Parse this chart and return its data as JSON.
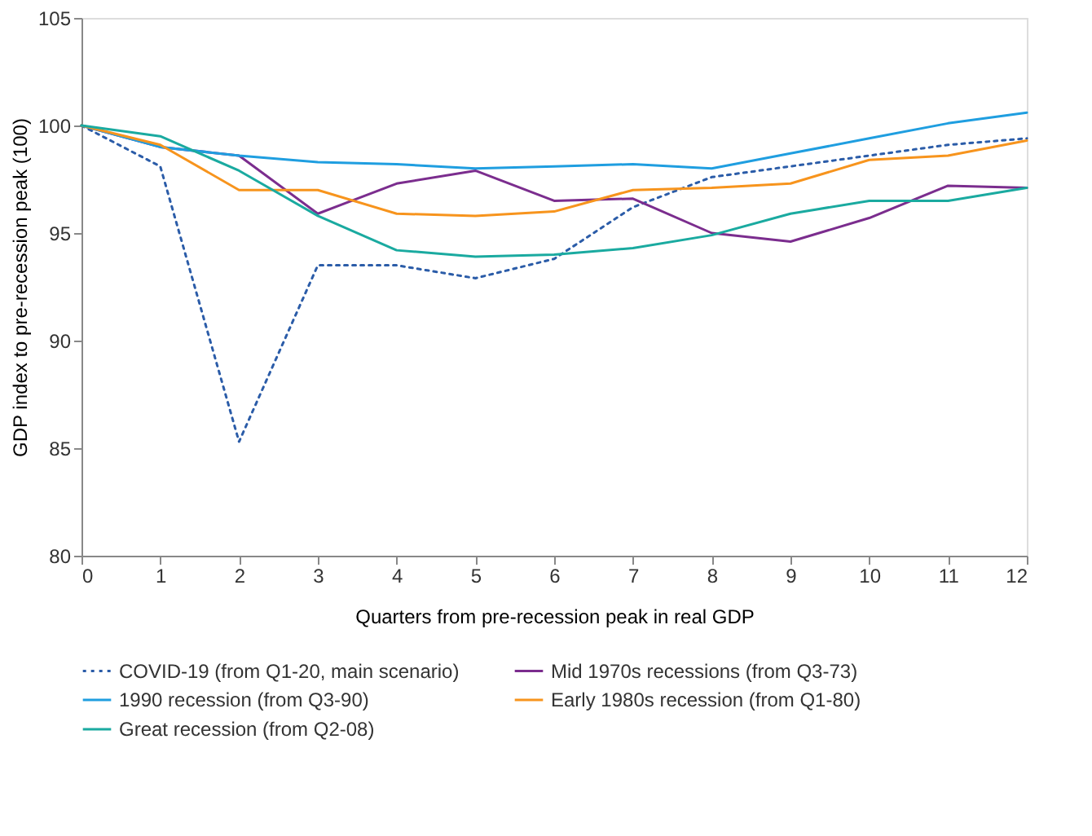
{
  "chart_data": {
    "type": "line",
    "xlabel": "Quarters from pre-recession peak in real GDP",
    "ylabel": "GDP index to pre-recession peak (100)",
    "x": [
      0,
      1,
      2,
      3,
      4,
      5,
      6,
      7,
      8,
      9,
      10,
      11,
      12
    ],
    "xlim": [
      0,
      12
    ],
    "xticks": [
      0,
      1,
      2,
      3,
      4,
      5,
      6,
      7,
      8,
      9,
      10,
      11,
      12
    ],
    "ylim": [
      80,
      105
    ],
    "yticks": [
      80,
      85,
      90,
      95,
      100,
      105
    ],
    "grid": false,
    "legend": "bottom",
    "marker": "none",
    "series": [
      {
        "name": "COVID-19 (from Q1-20, main scenario)",
        "color": "#2b5ca8",
        "line_style": "dotted",
        "values": [
          100,
          98.1,
          85.3,
          93.5,
          93.5,
          92.9,
          93.8,
          96.2,
          97.6,
          98.1,
          98.6,
          99.1,
          99.4
        ]
      },
      {
        "name": "Mid 1970s recessions (from Q3-73)",
        "color": "#7b2d8e",
        "line_style": "solid",
        "values": [
          100,
          99.0,
          98.6,
          95.9,
          97.3,
          97.9,
          96.5,
          96.6,
          95.0,
          94.6,
          95.7,
          97.2,
          97.1
        ]
      },
      {
        "name": "1990 recession (from Q3-90)",
        "color": "#1f9ee0",
        "line_style": "solid",
        "values": [
          100,
          99.0,
          98.6,
          98.3,
          98.2,
          98.0,
          98.1,
          98.2,
          98.0,
          98.7,
          99.4,
          100.1,
          100.6
        ]
      },
      {
        "name": "Early 1980s recession (from Q1-80)",
        "color": "#f7941d",
        "line_style": "solid",
        "values": [
          100,
          99.1,
          97.0,
          97.0,
          95.9,
          95.8,
          96.0,
          97.0,
          97.1,
          97.3,
          98.4,
          98.6,
          99.3
        ]
      },
      {
        "name": "Great recession (from Q2-08)",
        "color": "#1aaaa0",
        "line_style": "solid",
        "values": [
          100,
          99.5,
          97.9,
          95.8,
          94.2,
          93.9,
          94.0,
          94.3,
          94.9,
          95.9,
          96.5,
          96.5,
          97.1
        ]
      }
    ]
  }
}
